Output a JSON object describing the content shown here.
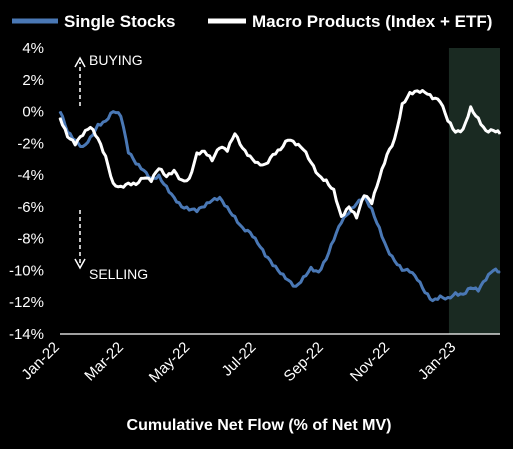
{
  "chart_data": {
    "type": "line",
    "title": "",
    "xlabel": "Cumulative Net Flow (% of Net MV)",
    "ylabel": "",
    "ylim": [
      -14,
      4
    ],
    "y_ticks": [
      "4%",
      "2%",
      "0%",
      "-2%",
      "-4%",
      "-6%",
      "-8%",
      "-10%",
      "-12%",
      "-14%"
    ],
    "x_ticks": [
      "Jan-22",
      "Mar-22",
      "May-22",
      "Jul-22",
      "Sep-22",
      "Nov-22",
      "Jan-23"
    ],
    "x_range": [
      "2022-01-01",
      "2023-02-10"
    ],
    "grid": false,
    "legend_position": "top",
    "highlight_region": {
      "x_start": "2022-12-25",
      "x_end": "2023-02-10",
      "color": "#1a2a22"
    },
    "annotations": [
      {
        "text": "BUYING",
        "direction": "up"
      },
      {
        "text": "SELLING",
        "direction": "down"
      }
    ],
    "series": [
      {
        "name": "Single Stocks",
        "color": "#4a78b5",
        "points": [
          [
            "2022-01-01",
            0.0
          ],
          [
            "2022-01-08",
            -1.3
          ],
          [
            "2022-01-15",
            -1.8
          ],
          [
            "2022-01-22",
            -2.2
          ],
          [
            "2022-01-29",
            -1.6
          ],
          [
            "2022-02-05",
            -0.8
          ],
          [
            "2022-02-12",
            -0.6
          ],
          [
            "2022-02-19",
            0.0
          ],
          [
            "2022-02-26",
            -0.3
          ],
          [
            "2022-03-05",
            -2.6
          ],
          [
            "2022-03-12",
            -3.3
          ],
          [
            "2022-03-19",
            -3.7
          ],
          [
            "2022-03-26",
            -4.2
          ],
          [
            "2022-04-02",
            -4.0
          ],
          [
            "2022-04-09",
            -4.7
          ],
          [
            "2022-04-16",
            -5.4
          ],
          [
            "2022-04-23",
            -6.0
          ],
          [
            "2022-04-30",
            -6.2
          ],
          [
            "2022-05-07",
            -6.3
          ],
          [
            "2022-05-14",
            -6.0
          ],
          [
            "2022-05-21",
            -5.6
          ],
          [
            "2022-05-28",
            -5.4
          ],
          [
            "2022-06-04",
            -6.0
          ],
          [
            "2022-06-11",
            -6.6
          ],
          [
            "2022-06-18",
            -7.3
          ],
          [
            "2022-06-25",
            -7.6
          ],
          [
            "2022-07-02",
            -8.3
          ],
          [
            "2022-07-09",
            -9.1
          ],
          [
            "2022-07-16",
            -9.7
          ],
          [
            "2022-07-23",
            -10.2
          ],
          [
            "2022-07-30",
            -10.6
          ],
          [
            "2022-08-06",
            -11.0
          ],
          [
            "2022-08-13",
            -10.4
          ],
          [
            "2022-08-20",
            -9.8
          ],
          [
            "2022-08-27",
            -10.1
          ],
          [
            "2022-09-03",
            -9.3
          ],
          [
            "2022-09-10",
            -8.1
          ],
          [
            "2022-09-17",
            -7.0
          ],
          [
            "2022-09-24",
            -6.4
          ],
          [
            "2022-10-01",
            -5.8
          ],
          [
            "2022-10-08",
            -5.3
          ],
          [
            "2022-10-15",
            -6.1
          ],
          [
            "2022-10-22",
            -7.3
          ],
          [
            "2022-10-29",
            -8.6
          ],
          [
            "2022-11-05",
            -9.4
          ],
          [
            "2022-11-12",
            -10.0
          ],
          [
            "2022-11-19",
            -10.1
          ],
          [
            "2022-11-26",
            -10.6
          ],
          [
            "2022-12-03",
            -11.4
          ],
          [
            "2022-12-10",
            -11.9
          ],
          [
            "2022-12-17",
            -11.6
          ],
          [
            "2022-12-24",
            -11.7
          ],
          [
            "2022-12-31",
            -11.4
          ],
          [
            "2023-01-07",
            -11.5
          ],
          [
            "2023-01-14",
            -11.1
          ],
          [
            "2023-01-21",
            -11.3
          ],
          [
            "2023-01-28",
            -10.6
          ],
          [
            "2023-02-04",
            -10.0
          ],
          [
            "2023-02-10",
            -10.1
          ]
        ]
      },
      {
        "name": "Macro Products (Index + ETF)",
        "color": "#ffffff",
        "points": [
          [
            "2022-01-01",
            -0.4
          ],
          [
            "2022-01-08",
            -1.6
          ],
          [
            "2022-01-15",
            -2.1
          ],
          [
            "2022-01-22",
            -1.5
          ],
          [
            "2022-01-29",
            -1.0
          ],
          [
            "2022-02-05",
            -1.7
          ],
          [
            "2022-02-12",
            -2.8
          ],
          [
            "2022-02-19",
            -4.5
          ],
          [
            "2022-02-26",
            -4.7
          ],
          [
            "2022-03-05",
            -4.5
          ],
          [
            "2022-03-12",
            -4.6
          ],
          [
            "2022-03-19",
            -4.2
          ],
          [
            "2022-03-26",
            -4.4
          ],
          [
            "2022-04-02",
            -3.6
          ],
          [
            "2022-04-09",
            -4.1
          ],
          [
            "2022-04-16",
            -3.7
          ],
          [
            "2022-04-23",
            -4.3
          ],
          [
            "2022-04-30",
            -4.2
          ],
          [
            "2022-05-07",
            -2.6
          ],
          [
            "2022-05-14",
            -2.5
          ],
          [
            "2022-05-21",
            -3.1
          ],
          [
            "2022-05-28",
            -2.3
          ],
          [
            "2022-06-04",
            -2.5
          ],
          [
            "2022-06-11",
            -1.4
          ],
          [
            "2022-06-18",
            -2.3
          ],
          [
            "2022-06-25",
            -2.8
          ],
          [
            "2022-07-02",
            -3.2
          ],
          [
            "2022-07-09",
            -3.3
          ],
          [
            "2022-07-16",
            -2.7
          ],
          [
            "2022-07-23",
            -2.4
          ],
          [
            "2022-07-30",
            -1.8
          ],
          [
            "2022-08-06",
            -2.1
          ],
          [
            "2022-08-13",
            -2.4
          ],
          [
            "2022-08-20",
            -3.2
          ],
          [
            "2022-08-27",
            -4.0
          ],
          [
            "2022-09-03",
            -4.3
          ],
          [
            "2022-09-10",
            -4.9
          ],
          [
            "2022-09-17",
            -6.6
          ],
          [
            "2022-09-24",
            -6.0
          ],
          [
            "2022-10-01",
            -6.7
          ],
          [
            "2022-10-08",
            -5.3
          ],
          [
            "2022-10-15",
            -5.8
          ],
          [
            "2022-10-22",
            -4.2
          ],
          [
            "2022-10-29",
            -2.7
          ],
          [
            "2022-11-05",
            -1.7
          ],
          [
            "2022-11-12",
            0.5
          ],
          [
            "2022-11-19",
            1.2
          ],
          [
            "2022-11-26",
            1.3
          ],
          [
            "2022-12-03",
            1.2
          ],
          [
            "2022-12-10",
            0.8
          ],
          [
            "2022-12-17",
            0.6
          ],
          [
            "2022-12-24",
            -0.6
          ],
          [
            "2022-12-31",
            -1.3
          ],
          [
            "2023-01-07",
            -1.1
          ],
          [
            "2023-01-14",
            0.3
          ],
          [
            "2023-01-21",
            -0.4
          ],
          [
            "2023-01-28",
            -1.2
          ],
          [
            "2023-02-04",
            -1.2
          ],
          [
            "2023-02-10",
            -1.4
          ]
        ]
      }
    ]
  }
}
